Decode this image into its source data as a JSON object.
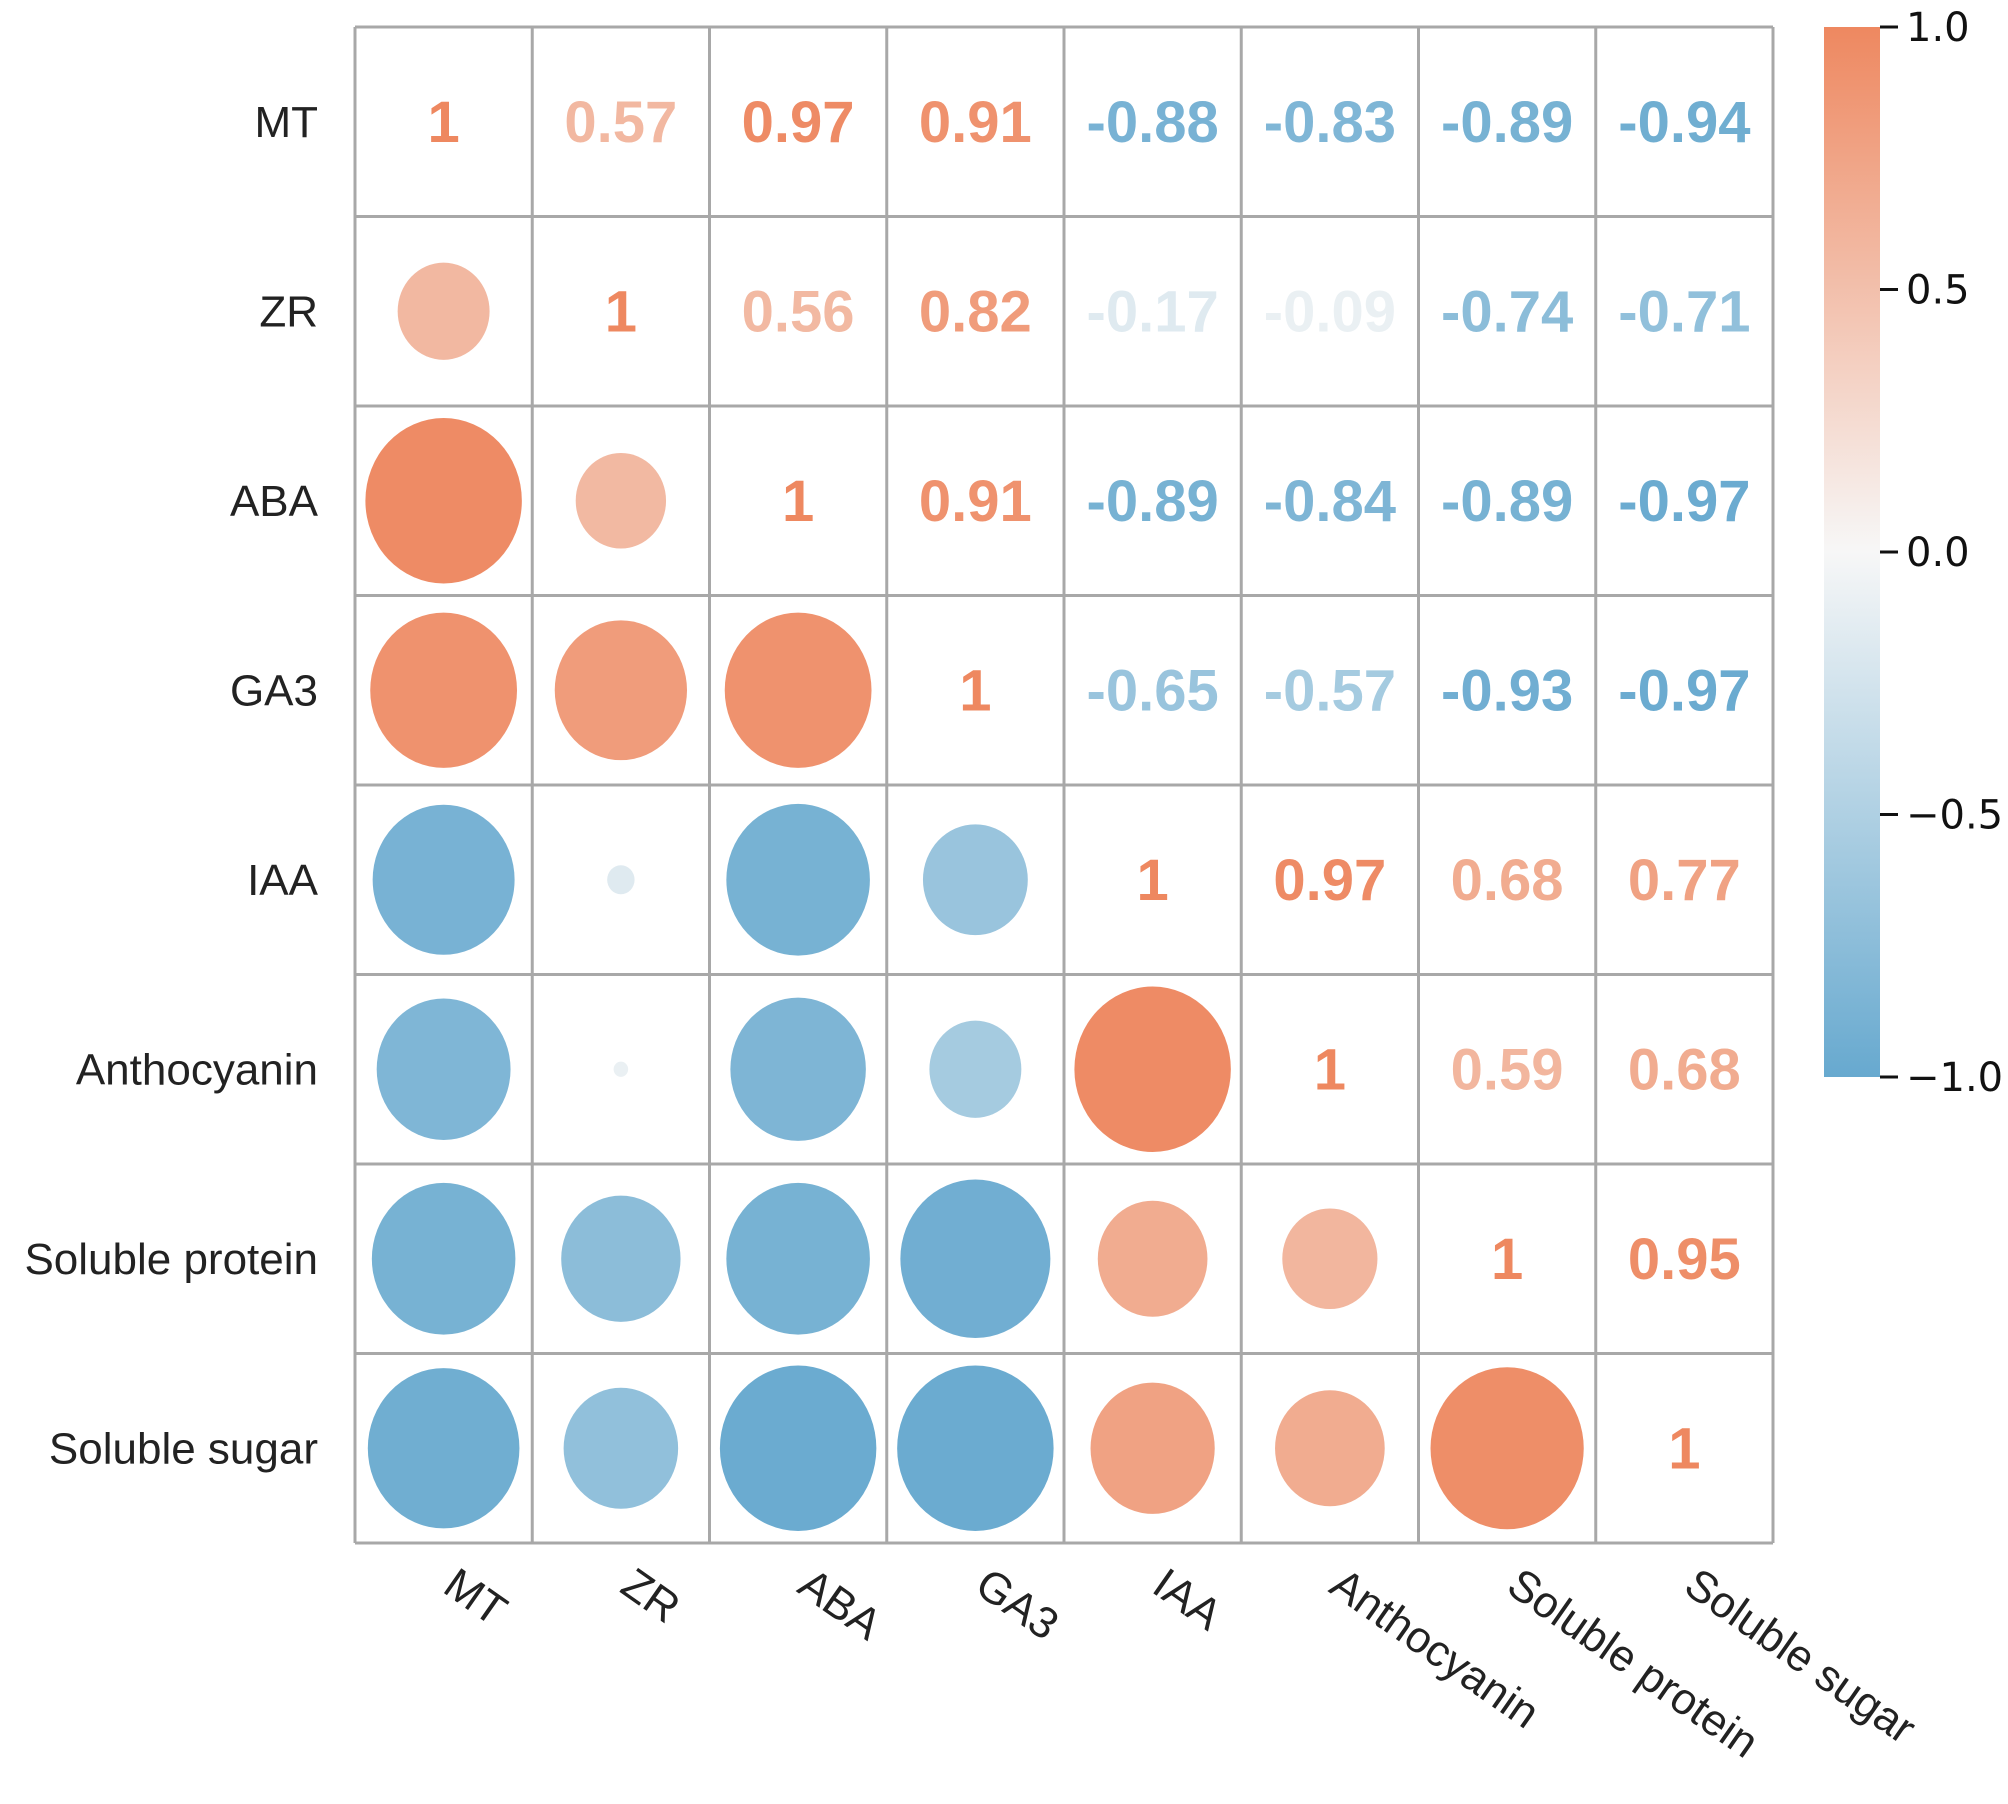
{
  "chart_data": {
    "type": "heatmap",
    "subtype": "correlation-matrix-mixed",
    "title": "",
    "variables": [
      "MT",
      "ZR",
      "ABA",
      "GA3",
      "IAA",
      "Anthocyanin",
      "Soluble protein",
      "Soluble sugar"
    ],
    "row_labels": [
      "MT",
      "ZR",
      "ABA",
      "GA3",
      "IAA",
      "Anthocyanin",
      "Soluble protein",
      "Soluble sugar"
    ],
    "col_labels": [
      "MT",
      "ZR",
      "ABA",
      "GA3",
      "IAA",
      "Anthocyanin",
      "Soluble protein",
      "Soluble sugar"
    ],
    "matrix": [
      [
        1,
        0.57,
        0.97,
        0.91,
        -0.88,
        -0.83,
        -0.89,
        -0.94
      ],
      [
        0.57,
        1,
        0.56,
        0.82,
        -0.17,
        -0.09,
        -0.74,
        -0.71
      ],
      [
        0.97,
        0.56,
        1,
        0.91,
        -0.89,
        -0.84,
        -0.89,
        -0.97
      ],
      [
        0.91,
        0.82,
        0.91,
        1,
        -0.65,
        -0.57,
        -0.93,
        -0.97
      ],
      [
        -0.88,
        -0.17,
        -0.89,
        -0.65,
        1,
        0.97,
        0.68,
        0.77
      ],
      [
        -0.83,
        -0.09,
        -0.84,
        -0.57,
        0.97,
        1,
        0.59,
        0.68
      ],
      [
        -0.89,
        -0.74,
        -0.89,
        -0.93,
        0.68,
        0.59,
        1,
        0.95
      ],
      [
        -0.94,
        -0.71,
        -0.97,
        -0.97,
        0.77,
        0.68,
        0.95,
        1
      ]
    ],
    "upper_triangle": "numeric-labels",
    "lower_triangle": "circles-sized-by-abs-r",
    "diagonal": "numeric-labels",
    "colorbar": {
      "range": [
        -1.0,
        1.0
      ],
      "ticks": [
        1.0,
        0.5,
        0.0,
        -0.5,
        -1.0
      ],
      "tick_labels": [
        "1.0",
        "0.5",
        "0.0",
        "−0.5",
        "−1.0"
      ],
      "placement": "right"
    },
    "colors": {
      "positive": "#EE8860",
      "neutral": "#F7F7F7",
      "negative": "#67A9CF",
      "grid": "#A8A8A8"
    },
    "xlabel": "",
    "ylabel": ""
  }
}
